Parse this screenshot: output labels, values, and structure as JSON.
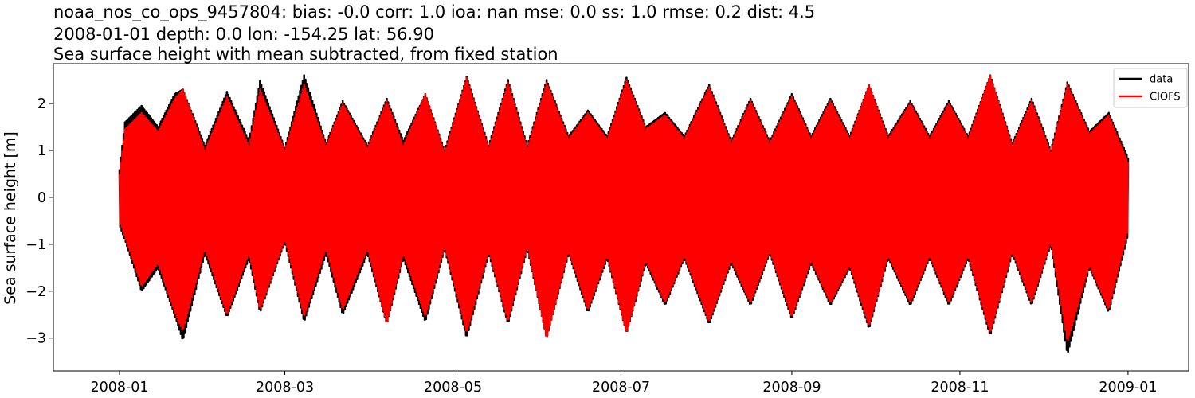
{
  "chart_data": {
    "type": "line",
    "title_lines": [
      "noaa_nos_co_ops_9457804: bias: -0.0  corr: 1.0  ioa: nan  mse: 0.0  ss: 1.0  rmse: 0.2  dist: 4.5",
      "2008-01-01 depth: 0.0 lon: -154.25 lat: 56.90",
      "Sea surface height with mean subtracted, from fixed station"
    ],
    "xlabel": "",
    "ylabel": "Sea surface height [m]",
    "xlim": [
      "2007-12-08",
      "2009-01-23"
    ],
    "ylim": [
      -3.7,
      2.85
    ],
    "x_ticks": [
      "2008-01",
      "2008-03",
      "2008-05",
      "2008-07",
      "2008-09",
      "2008-11",
      "2009-01"
    ],
    "y_ticks": [
      2,
      1,
      0,
      -1,
      -2,
      -3
    ],
    "y_tick_labels": [
      "2",
      "1",
      "0",
      "−1",
      "−2",
      "−3"
    ],
    "grid": false,
    "legend_position": "top-right",
    "x_range": [
      "2008-01-01",
      "2009-01-01"
    ],
    "series": [
      {
        "name": "data",
        "color": "#000000",
        "envelope": [
          {
            "x": "2008-01-01",
            "low": -0.6,
            "high": 0.6
          },
          {
            "x": "2008-01-03",
            "low": -0.9,
            "high": 1.6
          },
          {
            "x": "2008-01-09",
            "low": -2.0,
            "high": 1.95
          },
          {
            "x": "2008-01-15",
            "low": -1.5,
            "high": 1.5
          },
          {
            "x": "2008-01-21",
            "low": -2.5,
            "high": 2.2
          },
          {
            "x": "2008-01-24",
            "low": -3.05,
            "high": 2.3
          },
          {
            "x": "2008-02-01",
            "low": -1.2,
            "high": 1.1
          },
          {
            "x": "2008-02-09",
            "low": -2.55,
            "high": 2.25
          },
          {
            "x": "2008-02-17",
            "low": -1.3,
            "high": 1.2
          },
          {
            "x": "2008-02-21",
            "low": -2.45,
            "high": 2.48
          },
          {
            "x": "2008-03-01",
            "low": -0.95,
            "high": 1.05
          },
          {
            "x": "2008-03-08",
            "low": -2.65,
            "high": 2.6
          },
          {
            "x": "2008-03-16",
            "low": -1.2,
            "high": 1.15
          },
          {
            "x": "2008-03-22",
            "low": -2.5,
            "high": 2.05
          },
          {
            "x": "2008-03-31",
            "low": -1.2,
            "high": 1.1
          },
          {
            "x": "2008-04-07",
            "low": -2.7,
            "high": 2.1
          },
          {
            "x": "2008-04-13",
            "low": -1.3,
            "high": 1.2
          },
          {
            "x": "2008-04-21",
            "low": -2.65,
            "high": 2.2
          },
          {
            "x": "2008-04-28",
            "low": -1.1,
            "high": 1.0
          },
          {
            "x": "2008-05-06",
            "low": -3.0,
            "high": 2.57
          },
          {
            "x": "2008-05-14",
            "low": -1.2,
            "high": 1.1
          },
          {
            "x": "2008-05-21",
            "low": -2.7,
            "high": 2.5
          },
          {
            "x": "2008-05-28",
            "low": -1.1,
            "high": 1.1
          },
          {
            "x": "2008-06-04",
            "low": -3.0,
            "high": 2.5
          },
          {
            "x": "2008-06-12",
            "low": -1.2,
            "high": 1.3
          },
          {
            "x": "2008-06-19",
            "low": -2.45,
            "high": 1.85
          },
          {
            "x": "2008-06-26",
            "low": -1.3,
            "high": 1.3
          },
          {
            "x": "2008-07-03",
            "low": -2.9,
            "high": 2.55
          },
          {
            "x": "2008-07-10",
            "low": -1.4,
            "high": 1.5
          },
          {
            "x": "2008-07-17",
            "low": -2.3,
            "high": 1.8
          },
          {
            "x": "2008-07-24",
            "low": -1.3,
            "high": 1.3
          },
          {
            "x": "2008-08-02",
            "low": -2.7,
            "high": 2.4
          },
          {
            "x": "2008-08-10",
            "low": -1.4,
            "high": 1.2
          },
          {
            "x": "2008-08-17",
            "low": -2.3,
            "high": 2.1
          },
          {
            "x": "2008-08-24",
            "low": -1.2,
            "high": 1.2
          },
          {
            "x": "2008-09-01",
            "low": -2.6,
            "high": 2.2
          },
          {
            "x": "2008-09-08",
            "low": -1.4,
            "high": 1.3
          },
          {
            "x": "2008-09-15",
            "low": -2.3,
            "high": 2.1
          },
          {
            "x": "2008-09-22",
            "low": -1.5,
            "high": 1.3
          },
          {
            "x": "2008-09-29",
            "low": -2.8,
            "high": 2.4
          },
          {
            "x": "2008-10-06",
            "low": -1.3,
            "high": 1.3
          },
          {
            "x": "2008-10-14",
            "low": -2.3,
            "high": 2.05
          },
          {
            "x": "2008-10-21",
            "low": -1.3,
            "high": 1.3
          },
          {
            "x": "2008-10-28",
            "low": -2.3,
            "high": 2.05
          },
          {
            "x": "2008-11-04",
            "low": -1.3,
            "high": 1.3
          },
          {
            "x": "2008-11-12",
            "low": -2.95,
            "high": 2.6
          },
          {
            "x": "2008-11-20",
            "low": -1.2,
            "high": 1.15
          },
          {
            "x": "2008-11-27",
            "low": -2.3,
            "high": 2.1
          },
          {
            "x": "2008-12-04",
            "low": -1.0,
            "high": 1.0
          },
          {
            "x": "2008-12-10",
            "low": -3.35,
            "high": 2.45
          },
          {
            "x": "2008-12-18",
            "low": -1.5,
            "high": 1.4
          },
          {
            "x": "2008-12-25",
            "low": -2.45,
            "high": 1.8
          },
          {
            "x": "2009-01-01",
            "low": -0.8,
            "high": 0.85
          }
        ]
      },
      {
        "name": "CIOFS",
        "color": "#ff0000",
        "envelope": [
          {
            "x": "2008-01-01",
            "low": -0.5,
            "high": 0.5
          },
          {
            "x": "2008-01-03",
            "low": -0.85,
            "high": 1.45
          },
          {
            "x": "2008-01-09",
            "low": -1.9,
            "high": 1.8
          },
          {
            "x": "2008-01-15",
            "low": -1.4,
            "high": 1.4
          },
          {
            "x": "2008-01-21",
            "low": -2.45,
            "high": 2.1
          },
          {
            "x": "2008-01-24",
            "low": -2.85,
            "high": 2.3
          },
          {
            "x": "2008-02-01",
            "low": -1.1,
            "high": 1.0
          },
          {
            "x": "2008-02-09",
            "low": -2.5,
            "high": 2.15
          },
          {
            "x": "2008-02-17",
            "low": -1.2,
            "high": 1.1
          },
          {
            "x": "2008-02-21",
            "low": -2.4,
            "high": 2.3
          },
          {
            "x": "2008-03-01",
            "low": -0.9,
            "high": 1.0
          },
          {
            "x": "2008-03-08",
            "low": -2.55,
            "high": 2.4
          },
          {
            "x": "2008-03-16",
            "low": -1.1,
            "high": 1.1
          },
          {
            "x": "2008-03-22",
            "low": -2.4,
            "high": 2.0
          },
          {
            "x": "2008-03-31",
            "low": -1.1,
            "high": 1.05
          },
          {
            "x": "2008-04-07",
            "low": -2.7,
            "high": 2.05
          },
          {
            "x": "2008-04-13",
            "low": -1.2,
            "high": 1.1
          },
          {
            "x": "2008-04-21",
            "low": -2.55,
            "high": 2.2
          },
          {
            "x": "2008-04-28",
            "low": -1.05,
            "high": 0.95
          },
          {
            "x": "2008-05-06",
            "low": -2.9,
            "high": 2.55
          },
          {
            "x": "2008-05-14",
            "low": -1.15,
            "high": 1.05
          },
          {
            "x": "2008-05-21",
            "low": -2.65,
            "high": 2.45
          },
          {
            "x": "2008-05-28",
            "low": -1.05,
            "high": 1.05
          },
          {
            "x": "2008-06-04",
            "low": -3.02,
            "high": 2.45
          },
          {
            "x": "2008-06-12",
            "low": -1.15,
            "high": 1.25
          },
          {
            "x": "2008-06-19",
            "low": -2.4,
            "high": 1.8
          },
          {
            "x": "2008-06-26",
            "low": -1.25,
            "high": 1.25
          },
          {
            "x": "2008-07-03",
            "low": -2.9,
            "high": 2.5
          },
          {
            "x": "2008-07-10",
            "low": -1.35,
            "high": 1.45
          },
          {
            "x": "2008-07-17",
            "low": -2.25,
            "high": 1.75
          },
          {
            "x": "2008-07-24",
            "low": -1.25,
            "high": 1.25
          },
          {
            "x": "2008-08-02",
            "low": -2.65,
            "high": 2.35
          },
          {
            "x": "2008-08-10",
            "low": -1.35,
            "high": 1.15
          },
          {
            "x": "2008-08-17",
            "low": -2.25,
            "high": 2.05
          },
          {
            "x": "2008-08-24",
            "low": -1.15,
            "high": 1.15
          },
          {
            "x": "2008-09-01",
            "low": -2.55,
            "high": 2.15
          },
          {
            "x": "2008-09-08",
            "low": -1.35,
            "high": 1.25
          },
          {
            "x": "2008-09-15",
            "low": -2.25,
            "high": 2.05
          },
          {
            "x": "2008-09-22",
            "low": -1.45,
            "high": 1.25
          },
          {
            "x": "2008-09-29",
            "low": -2.75,
            "high": 2.4
          },
          {
            "x": "2008-10-06",
            "low": -1.25,
            "high": 1.25
          },
          {
            "x": "2008-10-14",
            "low": -2.25,
            "high": 2.0
          },
          {
            "x": "2008-10-21",
            "low": -1.25,
            "high": 1.25
          },
          {
            "x": "2008-10-28",
            "low": -2.25,
            "high": 2.0
          },
          {
            "x": "2008-11-04",
            "low": -1.25,
            "high": 1.25
          },
          {
            "x": "2008-11-12",
            "low": -2.9,
            "high": 2.6
          },
          {
            "x": "2008-11-20",
            "low": -1.15,
            "high": 1.1
          },
          {
            "x": "2008-11-27",
            "low": -2.25,
            "high": 2.05
          },
          {
            "x": "2008-12-04",
            "low": -0.95,
            "high": 0.95
          },
          {
            "x": "2008-12-10",
            "low": -3.1,
            "high": 2.4
          },
          {
            "x": "2008-12-18",
            "low": -1.45,
            "high": 1.35
          },
          {
            "x": "2008-12-25",
            "low": -2.4,
            "high": 1.75
          },
          {
            "x": "2009-01-01",
            "low": -0.7,
            "high": 0.75
          }
        ]
      }
    ]
  }
}
